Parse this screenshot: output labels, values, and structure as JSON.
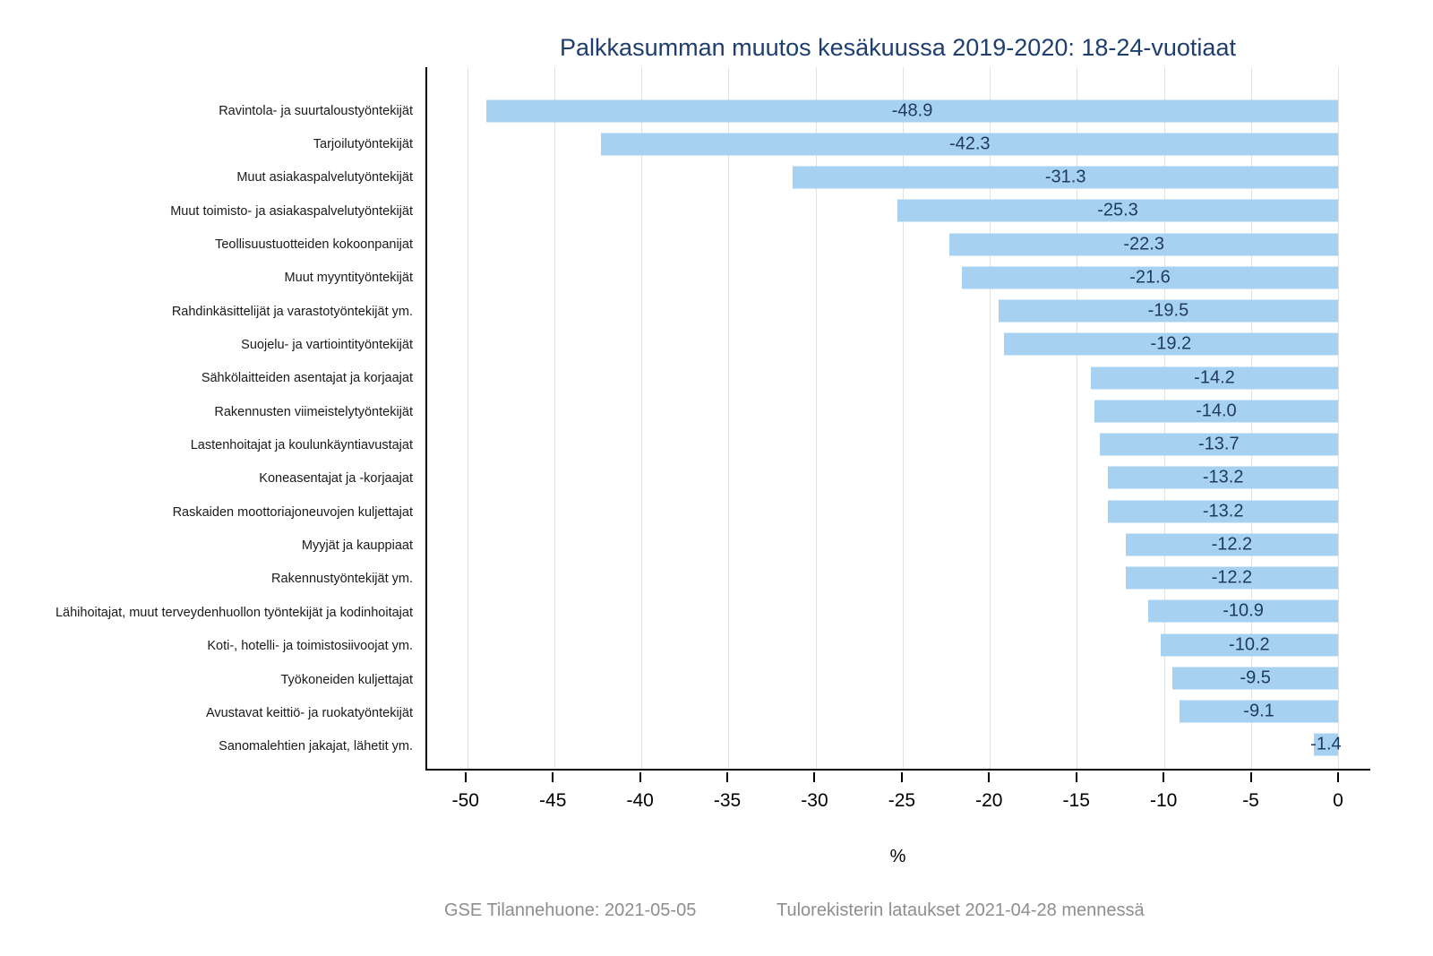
{
  "title": "Palkkasumman muutos kesäkuussa 2019-2020: 18-24-vuotiaat",
  "chart_data": {
    "type": "bar",
    "orientation": "horizontal",
    "title": "Palkkasumman muutos kesäkuussa 2019-2020: 18-24-vuotiaat",
    "categories": [
      "Ravintola- ja suurtaloustyöntekijät",
      "Tarjoilutyöntekijät",
      "Muut asiakaspalvelutyöntekijät",
      "Muut toimisto- ja asiakaspalvelutyöntekijät",
      "Teollisuustuotteiden kokoonpanijat",
      "Muut myyntityöntekijät",
      "Rahdinkäsittelijät ja varastotyöntekijät ym.",
      "Suojelu- ja vartiointityöntekijät",
      "Sähkölaitteiden asentajat ja korjaajat",
      "Rakennusten viimeistelytyöntekijät",
      "Lastenhoitajat ja koulunkäyntiavustajat",
      "Koneasentajat ja -korjaajat",
      "Raskaiden moottoriajoneuvojen kuljettajat",
      "Myyjät ja kauppiaat",
      "Rakennustyöntekijät ym.",
      "Lähihoitajat, muut terveydenhuollon työntekijät ja kodinhoitajat",
      "Koti-, hotelli- ja toimistosiivoojat ym.",
      "Työkoneiden kuljettajat",
      "Avustavat keittiö- ja ruokatyöntekijät",
      "Sanomalehtien jakajat, lähetit ym."
    ],
    "values": [
      -48.9,
      -42.3,
      -31.3,
      -25.3,
      -22.3,
      -21.6,
      -19.5,
      -19.2,
      -14.2,
      -14.0,
      -13.7,
      -13.2,
      -13.2,
      -12.2,
      -12.2,
      -10.9,
      -10.2,
      -9.5,
      -9.1,
      -1.4
    ],
    "value_labels": [
      "-48.9",
      "-42.3",
      "-31.3",
      "-25.3",
      "-22.3",
      "-21.6",
      "-19.5",
      "-19.2",
      "-14.2",
      "-14.0",
      "-13.7",
      "-13.2",
      "-13.2",
      "-12.2",
      "-12.2",
      "-10.9",
      "-10.2",
      "-9.5",
      "-9.1",
      "-1.4"
    ],
    "xlabel": "%",
    "x_ticks": [
      -50,
      -45,
      -40,
      -35,
      -30,
      -25,
      -20,
      -15,
      -10,
      -5,
      0
    ],
    "x_tick_labels": [
      "-50",
      "-45",
      "-40",
      "-35",
      "-30",
      "-25",
      "-20",
      "-15",
      "-10",
      "-5",
      "0"
    ],
    "xlim": [
      -52.3,
      1.85
    ],
    "grid": true,
    "legend": "none",
    "bar_color": "#a7d1f0",
    "value_label_color": "#1f3a5e",
    "title_color": "#1d3e6e",
    "grid_color": "#e2e2e2",
    "axis_color": "#000000"
  },
  "footer": {
    "left": "GSE Tilannehuone: 2021-05-05",
    "right": "Tulorekisterin lataukset 2021-04-28 mennessä"
  }
}
